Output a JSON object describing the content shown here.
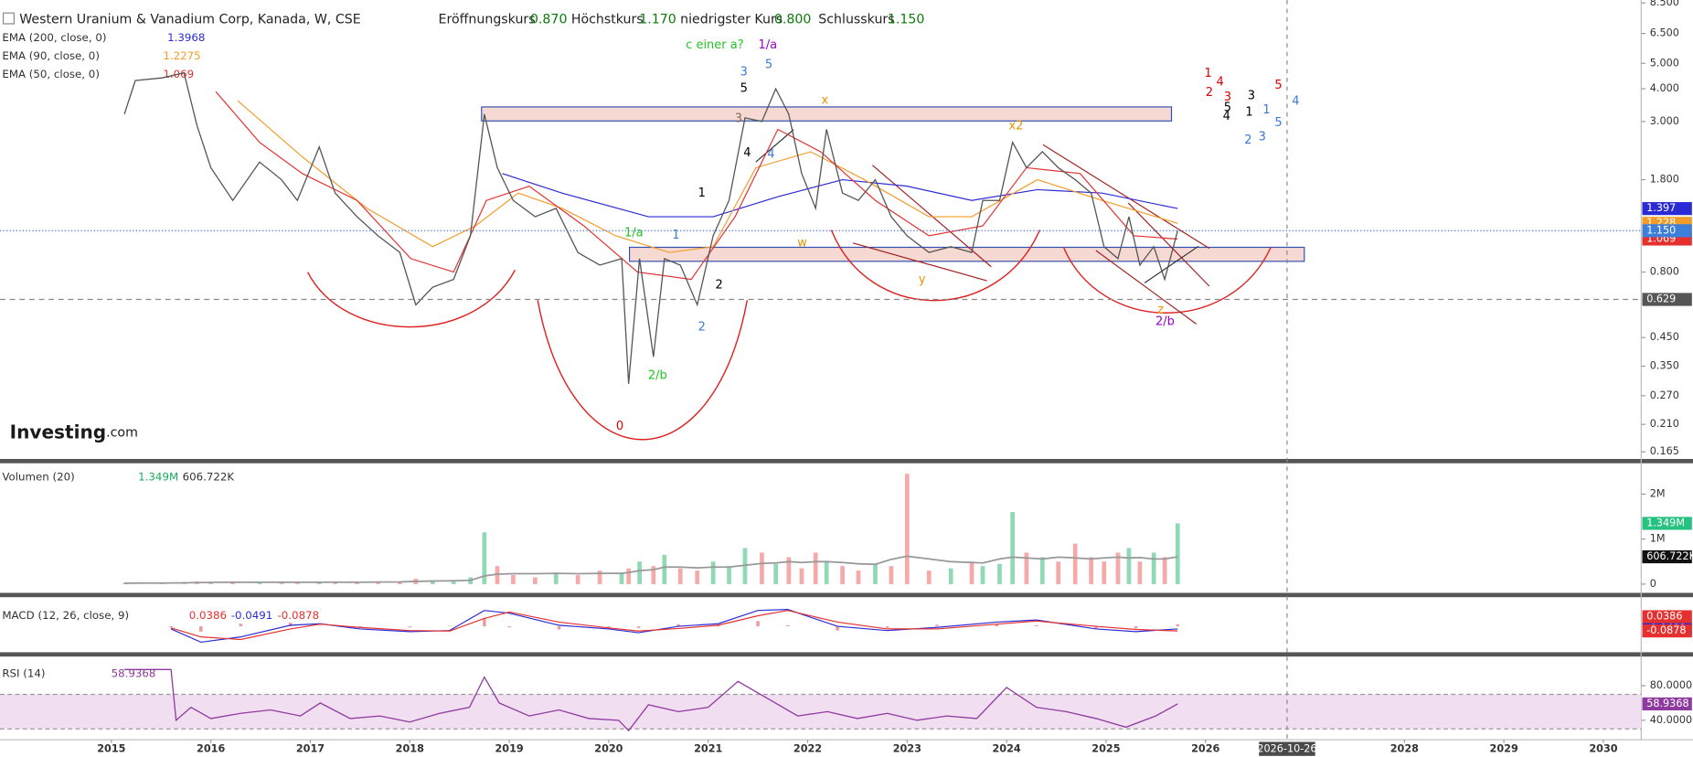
{
  "chart_data": [
    {
      "type": "line",
      "title": "Western Uranium & Vanadium Corp, Kanada, W, CSE",
      "ohlc": [
        {
          "label": "Eröffnungskurs",
          "value": "0.870"
        },
        {
          "label": "Höchstkurs",
          "value": "1.170"
        },
        {
          "label": "niedrigster Kurs",
          "value": "0.800"
        },
        {
          "label": "Schlusskurs",
          "value": "1.150"
        }
      ],
      "logo": "Investing",
      "logo_suffix": ".com",
      "log_scale": true,
      "grid": false,
      "color": "#555555",
      "xlim": [
        2013.88,
        2030.38
      ],
      "xticks": [
        2015,
        2016,
        2017,
        2018,
        2019,
        2020,
        2021,
        2022,
        2023,
        2024,
        2025,
        2026,
        2028,
        2029,
        2030
      ],
      "crosshair": {
        "value": 2026.82,
        "label": "2026-10-26"
      },
      "ylim": [
        0.155,
        8.72
      ],
      "yticks": [
        {
          "value": 8.5,
          "label": "8.500"
        },
        {
          "value": 6.5,
          "label": "6.500"
        },
        {
          "value": 5,
          "label": "5.000"
        },
        {
          "value": 4,
          "label": "4.000"
        },
        {
          "value": 3,
          "label": "3.000"
        },
        {
          "value": 1.8,
          "label": "1.800"
        },
        {
          "value": 0.8,
          "label": "0.800"
        },
        {
          "value": 0.45,
          "label": "0.450"
        },
        {
          "value": 0.35,
          "label": "0.350"
        },
        {
          "value": 0.27,
          "label": "0.270"
        },
        {
          "value": 0.21,
          "label": "0.210"
        },
        {
          "value": 0.165,
          "label": "0.165"
        }
      ],
      "x": [
        2015.13,
        2015.24,
        2015.51,
        2015.73,
        2015.86,
        2016.0,
        2016.22,
        2016.49,
        2016.71,
        2016.87,
        2017.09,
        2017.25,
        2017.47,
        2017.68,
        2017.9,
        2018.06,
        2018.23,
        2018.44,
        2018.61,
        2018.75,
        2018.88,
        2019.04,
        2019.26,
        2019.47,
        2019.69,
        2019.91,
        2020.13,
        2020.2,
        2020.31,
        2020.45,
        2020.56,
        2020.72,
        2020.89,
        2021.05,
        2021.21,
        2021.37,
        2021.54,
        2021.68,
        2021.81,
        2021.94,
        2022.08,
        2022.19,
        2022.35,
        2022.51,
        2022.68,
        2022.84,
        2023.0,
        2023.22,
        2023.44,
        2023.65,
        2023.76,
        2023.93,
        2024.06,
        2024.2,
        2024.36,
        2024.52,
        2024.69,
        2024.85,
        2024.98,
        2025.12,
        2025.23,
        2025.34,
        2025.48,
        2025.59,
        2025.72
      ],
      "values": [
        3.2,
        4.3,
        4.4,
        4.6,
        2.9,
        2.0,
        1.5,
        2.1,
        1.8,
        1.5,
        2.4,
        1.6,
        1.3,
        1.1,
        0.95,
        0.6,
        0.7,
        0.75,
        1.1,
        3.2,
        2.0,
        1.5,
        1.3,
        1.4,
        0.95,
        0.85,
        0.9,
        0.3,
        0.9,
        0.38,
        0.9,
        0.85,
        0.6,
        1.1,
        1.5,
        3.1,
        3.0,
        4.0,
        3.2,
        1.9,
        1.4,
        2.8,
        1.6,
        1.5,
        1.8,
        1.3,
        1.1,
        0.95,
        1.0,
        0.95,
        1.5,
        1.5,
        2.5,
        2.0,
        2.3,
        2.0,
        1.8,
        1.6,
        1.0,
        0.9,
        1.3,
        0.85,
        1.0,
        0.75,
        1.15
      ],
      "last_label": "1.150",
      "levels": [
        {
          "value": 0.629,
          "label": "0.629"
        }
      ],
      "series": [
        {
          "name": "EMA (200, close, 0)",
          "color": "#2b2bd6",
          "axis_label": "1.397",
          "x": [
            2018.93,
            2019.53,
            2020.4,
            2021.05,
            2021.7,
            2022.35,
            2023.0,
            2023.65,
            2024.31,
            2024.96,
            2025.72
          ],
          "values": [
            1.9,
            1.6,
            1.3,
            1.3,
            1.55,
            1.8,
            1.7,
            1.5,
            1.65,
            1.6,
            1.3968
          ]
        },
        {
          "name": "EMA (90, close, 0)",
          "color": "#f29d2a",
          "axis_label": "1.228",
          "x": [
            2016.27,
            2016.92,
            2017.57,
            2018.23,
            2018.66,
            2019.09,
            2019.53,
            2020.07,
            2020.61,
            2021.05,
            2021.48,
            2022.03,
            2022.57,
            2023.22,
            2023.65,
            2024.31,
            2024.96,
            2025.72
          ],
          "values": [
            3.6,
            2.2,
            1.4,
            1.0,
            1.2,
            1.6,
            1.4,
            1.1,
            0.95,
            1.0,
            2.0,
            2.3,
            1.8,
            1.3,
            1.3,
            1.8,
            1.5,
            1.2275
          ]
        },
        {
          "name": "EMA (50, close, 0)",
          "color": "#e53030",
          "x": [
            2016.05,
            2016.49,
            2016.92,
            2017.47,
            2018.01,
            2018.44,
            2018.77,
            2019.2,
            2019.75,
            2020.29,
            2020.83,
            2021.27,
            2021.7,
            2022.13,
            2022.68,
            2023.22,
            2023.76,
            2024.2,
            2024.74,
            2025.28,
            2025.72
          ],
          "values": [
            3.9,
            2.5,
            1.9,
            1.5,
            0.9,
            0.8,
            1.5,
            1.7,
            1.2,
            0.8,
            0.75,
            1.3,
            2.8,
            2.3,
            1.5,
            1.1,
            1.2,
            2.0,
            1.9,
            1.1,
            1.069
          ]
        }
      ],
      "annotations": [
        {
          "text": "c einer a?",
          "color": "#22c322"
        },
        {
          "text": "1/a",
          "color": "#9a00cc"
        },
        {
          "text": "3",
          "color": "#3a7bd5"
        },
        {
          "text": "5",
          "color": "#3a7bd5"
        },
        {
          "text": "5",
          "color": "#000000"
        },
        {
          "text": "x",
          "color": "#e69500"
        },
        {
          "text": "3",
          "color": "#8a6a50"
        },
        {
          "text": "4",
          "color": "#000000"
        },
        {
          "text": "4",
          "color": "#3a7bd5"
        },
        {
          "text": "x2",
          "color": "#e69500"
        },
        {
          "text": "1",
          "color": "#000000"
        },
        {
          "text": "1/a",
          "color": "#22c322"
        },
        {
          "text": "1",
          "color": "#3a7bd5"
        },
        {
          "text": "w",
          "color": "#e69500"
        },
        {
          "text": "2",
          "color": "#000000"
        },
        {
          "text": "y",
          "color": "#e69500"
        },
        {
          "text": "2",
          "color": "#3a7bd5"
        },
        {
          "text": "2/b",
          "color": "#22c322"
        },
        {
          "text": "0",
          "color": "#dd0000"
        },
        {
          "text": "z",
          "color": "#e69500"
        },
        {
          "text": "2/b",
          "color": "#9a00cc"
        },
        {
          "text": "1",
          "color": "#dd0000"
        },
        {
          "text": "4",
          "color": "#dd0000"
        },
        {
          "text": "2",
          "color": "#dd0000"
        },
        {
          "text": "3",
          "color": "#dd0000"
        },
        {
          "text": "5",
          "color": "#dd0000"
        },
        {
          "text": "3",
          "color": "#000000"
        },
        {
          "text": "5",
          "color": "#000000"
        },
        {
          "text": "4",
          "color": "#000000"
        },
        {
          "text": "1",
          "color": "#000000"
        },
        {
          "text": "1",
          "color": "#3a7bd5"
        },
        {
          "text": "4",
          "color": "#3a7bd5"
        },
        {
          "text": "5",
          "color": "#3a7bd5"
        },
        {
          "text": "2",
          "color": "#3a7bd5"
        },
        {
          "text": "3",
          "color": "#3a7bd5"
        }
      ]
    },
    {
      "type": "bar",
      "title": "Volumen (20)",
      "up_color": "#8fd9b4",
      "down_color": "#f5a9a9",
      "ylim": [
        -170000,
        2660000
      ],
      "yticks": [
        0,
        {
          "value": 1000000,
          "label": "1M"
        },
        {
          "value": 2000000,
          "label": "2M"
        }
      ],
      "values": [
        20000,
        30000,
        15000,
        25000,
        60000,
        40000,
        30000,
        50000,
        40000,
        30000,
        60000,
        40000,
        30000,
        50000,
        60000,
        120000,
        80000,
        90000,
        150000,
        1150000,
        400000,
        200000,
        150000,
        250000,
        200000,
        300000,
        250000,
        350000,
        500000,
        400000,
        650000,
        350000,
        300000,
        500000,
        400000,
        800000,
        700000,
        450000,
        600000,
        350000,
        700000,
        500000,
        400000,
        300000,
        450000,
        400000,
        2450000,
        300000,
        350000,
        500000,
        400000,
        450000,
        1600000,
        700000,
        600000,
        500000,
        900000,
        600000,
        500000,
        700000,
        800000,
        500000,
        700000,
        600000,
        1349000
      ],
      "last_label": "1.349M",
      "ma": {
        "color": "#999999",
        "last_label": "606.722K",
        "values": [
          20000,
          25000,
          25000,
          28000,
          35000,
          38000,
          40000,
          42000,
          42000,
          40000,
          42000,
          44000,
          42000,
          45000,
          48000,
          60000,
          70000,
          75000,
          85000,
          180000,
          220000,
          230000,
          230000,
          240000,
          230000,
          240000,
          240000,
          260000,
          300000,
          320000,
          380000,
          380000,
          360000,
          380000,
          380000,
          420000,
          460000,
          470000,
          500000,
          480000,
          500000,
          500000,
          480000,
          450000,
          440000,
          550000,
          620000,
          560000,
          500000,
          480000,
          470000,
          560000,
          600000,
          580000,
          560000,
          600000,
          580000,
          560000,
          580000,
          600000,
          580000,
          590000,
          560000,
          560000,
          606722
        ]
      }
    },
    {
      "type": "line",
      "title": "MACD (12, 26, close, 9)",
      "ylim": [
        -0.45,
        0.45
      ],
      "yticks": [],
      "x": [
        2015.6,
        2015.9,
        2016.3,
        2016.8,
        2017.1,
        2017.5,
        2018.0,
        2018.4,
        2018.75,
        2019.0,
        2019.5,
        2020.0,
        2020.3,
        2020.7,
        2021.1,
        2021.5,
        2021.8,
        2022.3,
        2022.8,
        2023.3,
        2023.9,
        2024.3,
        2024.9,
        2025.3,
        2025.72
      ],
      "histogram": {
        "color": "#e57373",
        "values": [
          -0.02,
          -0.1,
          0.05,
          0.07,
          0.01,
          -0.03,
          -0.02,
          0.01,
          0.15,
          -0.02,
          -0.06,
          -0.02,
          -0.03,
          0.04,
          0.03,
          0.1,
          0.02,
          -0.08,
          -0.03,
          0.03,
          0.04,
          0.02,
          -0.05,
          -0.04,
          0.0386
        ]
      },
      "series": [
        {
          "color": "#2b2bd6",
          "values": [
            -0.05,
            -0.3,
            -0.2,
            0.02,
            0.05,
            -0.05,
            -0.1,
            -0.08,
            0.3,
            0.25,
            0.02,
            -0.05,
            -0.12,
            0.0,
            0.05,
            0.3,
            0.32,
            0.0,
            -0.08,
            -0.02,
            0.08,
            0.12,
            -0.05,
            -0.1,
            -0.0491
          ]
        },
        {
          "color": "#e53030",
          "values": [
            -0.03,
            -0.2,
            -0.25,
            -0.05,
            0.04,
            -0.02,
            -0.08,
            -0.09,
            0.15,
            0.27,
            0.08,
            -0.03,
            -0.09,
            -0.04,
            0.02,
            0.2,
            0.3,
            0.08,
            -0.05,
            -0.05,
            0.04,
            0.1,
            0.0,
            -0.06,
            -0.0878
          ]
        }
      ]
    },
    {
      "type": "line",
      "title": "RSI (14)",
      "color": "#8e3a9e",
      "ylim": [
        18.75,
        106.25
      ],
      "yticks": [
        {
          "value": 80,
          "label": "80.0000"
        },
        {
          "value": 40,
          "label": "40.0000"
        }
      ],
      "band": [
        30,
        70
      ],
      "x": [
        2015.13,
        2015.6,
        2015.65,
        2015.8,
        2016.0,
        2016.3,
        2016.6,
        2016.9,
        2017.1,
        2017.4,
        2017.7,
        2018.0,
        2018.3,
        2018.6,
        2018.75,
        2018.9,
        2019.2,
        2019.5,
        2019.8,
        2020.1,
        2020.2,
        2020.4,
        2020.7,
        2021.0,
        2021.3,
        2021.6,
        2021.9,
        2022.2,
        2022.5,
        2022.8,
        2023.1,
        2023.4,
        2023.7,
        2024.0,
        2024.3,
        2024.6,
        2024.9,
        2025.2,
        2025.5,
        2025.72
      ],
      "values": [
        98.75,
        98.75,
        40,
        55,
        42,
        48,
        52,
        45,
        60,
        42,
        45,
        38,
        48,
        55,
        90,
        60,
        45,
        52,
        42,
        40,
        28,
        58,
        50,
        55,
        85,
        65,
        45,
        50,
        42,
        48,
        40,
        45,
        42,
        78,
        55,
        50,
        42,
        32,
        45,
        58.9368
      ]
    }
  ]
}
